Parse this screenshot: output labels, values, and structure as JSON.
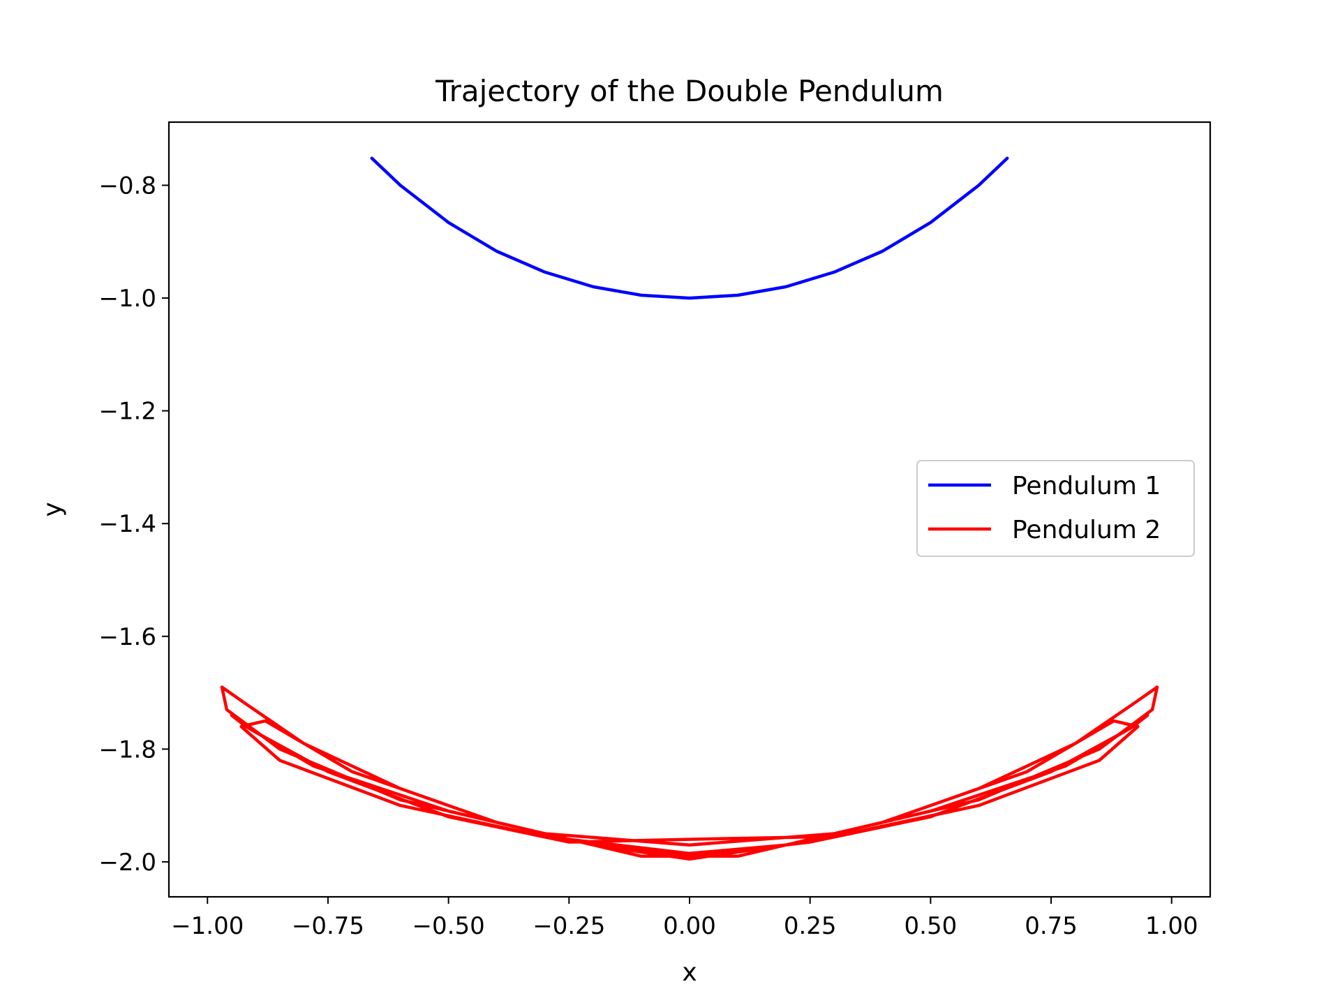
{
  "chart_data": {
    "type": "line",
    "title": "Trajectory of the Double Pendulum",
    "xlabel": "x",
    "ylabel": "y",
    "xlim": [
      -1.08,
      1.08
    ],
    "ylim": [
      -2.062,
      -0.688
    ],
    "xticks": [
      -1.0,
      -0.75,
      -0.5,
      -0.25,
      0.0,
      0.25,
      0.5,
      0.75,
      1.0
    ],
    "xtick_labels": [
      "−1.00",
      "−0.75",
      "−0.50",
      "−0.25",
      "0.00",
      "0.25",
      "0.50",
      "0.75",
      "1.00"
    ],
    "yticks": [
      -0.8,
      -1.0,
      -1.2,
      -1.4,
      -1.6,
      -1.8,
      -2.0
    ],
    "ytick_labels": [
      "−0.8",
      "−1.0",
      "−1.2",
      "−1.4",
      "−1.6",
      "−1.8",
      "−2.0"
    ],
    "grid": false,
    "legend_position": "center-right",
    "series": [
      {
        "name": "Pendulum 1",
        "color": "#0000ff",
        "x": [
          -0.659,
          -0.6,
          -0.5,
          -0.4,
          -0.3,
          -0.2,
          -0.1,
          0.0,
          0.1,
          0.2,
          0.3,
          0.4,
          0.5,
          0.6,
          0.659
        ],
        "y": [
          -0.752,
          -0.8,
          -0.866,
          -0.917,
          -0.954,
          -0.98,
          -0.995,
          -1.0,
          -0.995,
          -0.98,
          -0.954,
          -0.917,
          -0.866,
          -0.8,
          -0.752
        ]
      },
      {
        "name": "Pendulum 2",
        "color": "#ff0000",
        "x": [
          0.0,
          0.2,
          0.4,
          0.6,
          0.8,
          0.92,
          0.97,
          0.96,
          0.85,
          0.6,
          0.3,
          0.0,
          -0.3,
          -0.6,
          -0.85,
          -0.96,
          -0.97,
          -0.92,
          -0.8,
          -0.6,
          -0.4,
          -0.2,
          0.0,
          0.25,
          0.5,
          0.75,
          0.9,
          0.95,
          0.92,
          0.78,
          0.5,
          0.2,
          0.0,
          -0.2,
          -0.5,
          -0.78,
          -0.92,
          -0.95,
          -0.9,
          -0.75,
          -0.5,
          -0.25,
          0.0,
          0.3,
          0.6,
          0.85,
          0.93,
          0.88,
          0.7,
          0.4,
          0.1,
          -0.1,
          -0.4,
          -0.7,
          -0.88,
          -0.93,
          -0.85,
          -0.6,
          -0.3,
          0.0
        ],
        "y": [
          -1.985,
          -1.97,
          -1.93,
          -1.87,
          -1.79,
          -1.72,
          -1.69,
          -1.73,
          -1.8,
          -1.89,
          -1.95,
          -1.97,
          -1.95,
          -1.89,
          -1.8,
          -1.73,
          -1.69,
          -1.72,
          -1.79,
          -1.87,
          -1.93,
          -1.97,
          -1.99,
          -1.965,
          -1.92,
          -1.84,
          -1.77,
          -1.74,
          -1.76,
          -1.83,
          -1.91,
          -1.97,
          -1.995,
          -1.97,
          -1.91,
          -1.83,
          -1.76,
          -1.74,
          -1.77,
          -1.84,
          -1.92,
          -1.965,
          -1.96,
          -1.955,
          -1.9,
          -1.82,
          -1.76,
          -1.75,
          -1.84,
          -1.93,
          -1.99,
          -1.99,
          -1.93,
          -1.84,
          -1.75,
          -1.76,
          -1.82,
          -1.9,
          -1.955,
          -1.985
        ]
      }
    ]
  }
}
